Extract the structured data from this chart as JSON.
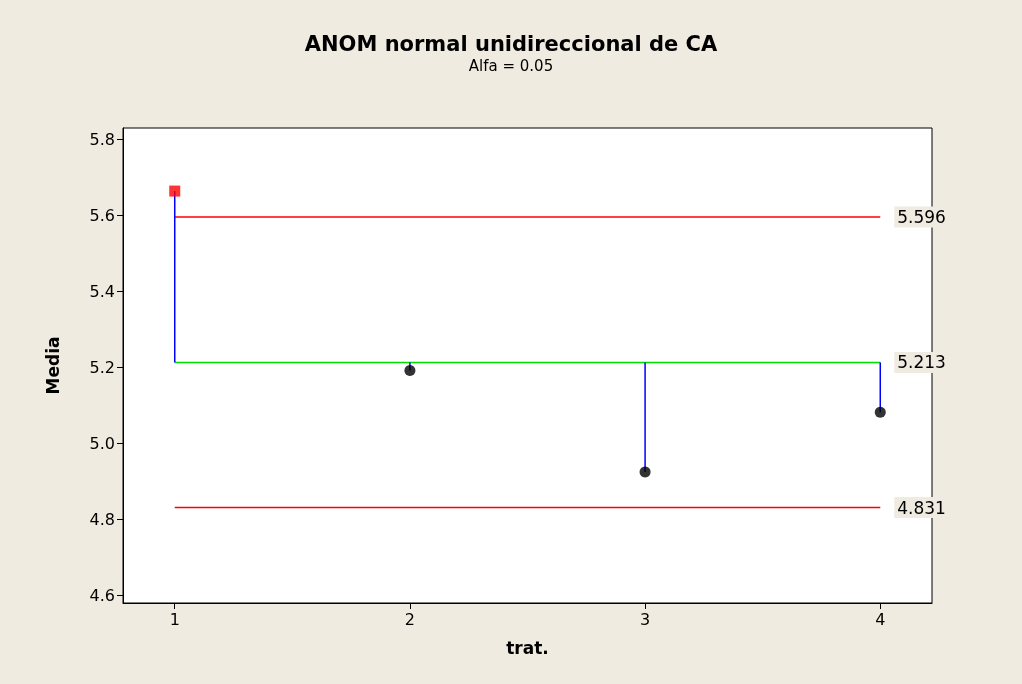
{
  "chart_data": {
    "type": "lollipop",
    "title": "ANOM normal unidireccional de CA",
    "subtitle": "Alfa = 0.05",
    "xlabel": "trat.",
    "ylabel": "Media",
    "xlim": [
      0.78,
      4.22
    ],
    "xticks": [
      1,
      2,
      3,
      4
    ],
    "ylim": [
      4.58,
      5.83
    ],
    "yticks": [
      4.6,
      4.8,
      {
        "value": 5,
        "label": "5.0"
      },
      5.2,
      5.4,
      5.6,
      5.8
    ],
    "series": [
      {
        "x": [
          1
        ],
        "values": [
          5.664
        ],
        "errors": [
          [
            5.213,
            5.664
          ]
        ],
        "color": "#0000ff",
        "colors": [
          "#ff0000"
        ],
        "marker": "square"
      },
      {
        "x": [
          2,
          3,
          4
        ],
        "values": [
          5.192,
          4.925,
          5.082
        ],
        "errors": [
          [
            5.192,
            5.213
          ],
          [
            4.925,
            5.213
          ],
          [
            5.082,
            5.213
          ]
        ],
        "color": "#0000ff",
        "colors": [
          "#000000",
          "#000000",
          "#000000"
        ],
        "marker": "circle"
      }
    ],
    "ref_lines": [
      {
        "axis": "y",
        "value": 5.596,
        "label": "5.596",
        "color": "#ff0000"
      },
      {
        "axis": "y",
        "value": 5.213,
        "label": "5.213",
        "color": "#00e000"
      },
      {
        "axis": "y",
        "value": 4.831,
        "label": "4.831",
        "color": "#ff0000"
      }
    ],
    "grid": false
  }
}
